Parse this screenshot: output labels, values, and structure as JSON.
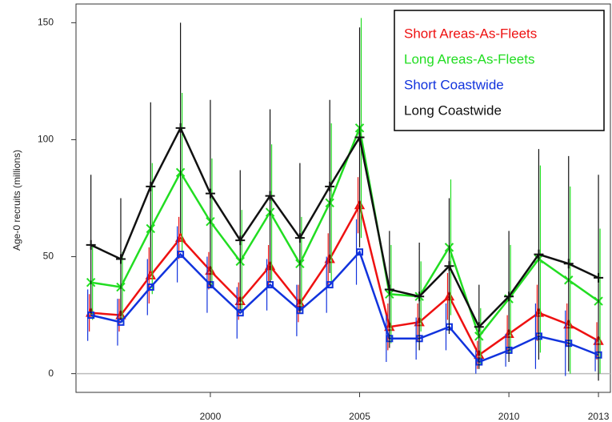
{
  "chart_data": {
    "type": "line",
    "y_label": "Age-0 recruits (millions)",
    "x": [
      1996,
      1997,
      1998,
      1999,
      2000,
      2001,
      2002,
      2003,
      2004,
      2005,
      2006,
      2007,
      2008,
      2009,
      2010,
      2011,
      2012,
      2013
    ],
    "xlim": [
      1995.5,
      2013.4
    ],
    "xticks": [
      2000,
      2005,
      2010,
      2013
    ],
    "ylim": [
      -8,
      158
    ],
    "yticks": [
      0,
      50,
      100,
      150
    ],
    "reference_line": 0,
    "legend": "top-right",
    "series": [
      {
        "name": "Short Areas-As-Fleets",
        "color": "#ee1111",
        "marker": "triangle",
        "values": [
          26,
          25,
          42,
          58,
          44,
          31,
          46,
          30,
          49,
          72,
          20,
          22,
          33,
          8,
          17,
          26,
          21,
          14
        ],
        "errors": [
          8,
          7,
          12,
          9,
          8,
          8,
          9,
          8,
          11,
          12,
          10,
          8,
          10,
          6,
          8,
          12,
          9,
          8
        ]
      },
      {
        "name": "Long Areas-As-Fleets",
        "color": "#22dd22",
        "marker": "x",
        "values": [
          39,
          37,
          62,
          86,
          65,
          48,
          69,
          47,
          73,
          105,
          34,
          33,
          54,
          16,
          32,
          49,
          40,
          31
        ],
        "errors": [
          16,
          15,
          28,
          34,
          27,
          22,
          29,
          20,
          34,
          47,
          21,
          15,
          29,
          12,
          23,
          40,
          40,
          31
        ]
      },
      {
        "name": "Short Coastwide",
        "color": "#1133dd",
        "marker": "square",
        "values": [
          25,
          22,
          37,
          51,
          38,
          26,
          38,
          27,
          38,
          52,
          15,
          15,
          20,
          5,
          10,
          16,
          13,
          8
        ],
        "errors": [
          11,
          10,
          12,
          12,
          12,
          11,
          11,
          11,
          12,
          14,
          10,
          9,
          10,
          5,
          7,
          14,
          14,
          7
        ]
      },
      {
        "name": "Long Coastwide",
        "color": "#111111",
        "marker": "plus",
        "values": [
          55,
          49,
          80,
          105,
          77,
          57,
          76,
          58,
          80,
          101,
          36,
          33,
          46,
          20,
          33,
          51,
          47,
          41
        ],
        "errors": [
          30,
          26,
          36,
          45,
          40,
          30,
          37,
          32,
          37,
          47,
          25,
          23,
          29,
          18,
          28,
          45,
          46,
          44
        ]
      }
    ]
  }
}
